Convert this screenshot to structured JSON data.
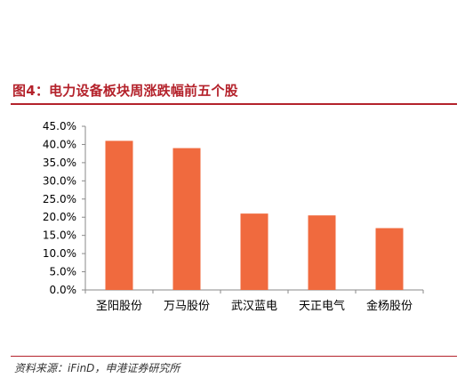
{
  "figure": {
    "title": "图4：电力设备板块周涨跌幅前五个股",
    "source": "资料来源：iFinD，申港证券研究所"
  },
  "colors": {
    "bar": "#f06a3e",
    "title": "#b4222b",
    "axis": "#8a8a8a",
    "text": "#000000"
  },
  "chart_data": {
    "type": "bar",
    "categories": [
      "圣阳股份",
      "万马股份",
      "武汉蓝电",
      "天正电气",
      "金杨股份"
    ],
    "values": [
      41.0,
      39.0,
      21.0,
      20.5,
      17.0
    ],
    "ylim": [
      0,
      45
    ],
    "ytick_values": [
      0,
      5,
      10,
      15,
      20,
      25,
      30,
      35,
      40,
      45
    ],
    "ytick_labels": [
      "0.0%",
      "5.0%",
      "10.0%",
      "15.0%",
      "20.0%",
      "25.0%",
      "30.0%",
      "35.0%",
      "40.0%",
      "45.0%"
    ],
    "grid": false,
    "legend": "none",
    "title": "",
    "xlabel": "",
    "ylabel": ""
  }
}
